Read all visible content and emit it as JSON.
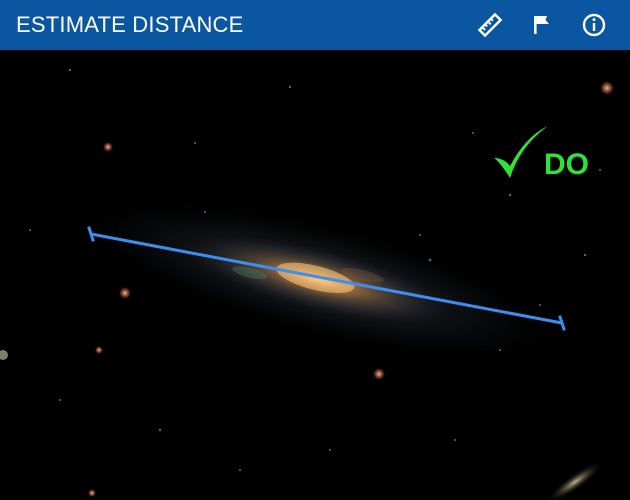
{
  "header": {
    "title": "ESTIMATE DISTANCE",
    "background": "#0a56a0",
    "icons": [
      "ruler-icon",
      "flag-icon",
      "info-icon"
    ]
  },
  "canvas": {
    "badge_text": "DO",
    "badge_color": "#2fe23a",
    "measure_line_color": "#3c8ff0"
  }
}
